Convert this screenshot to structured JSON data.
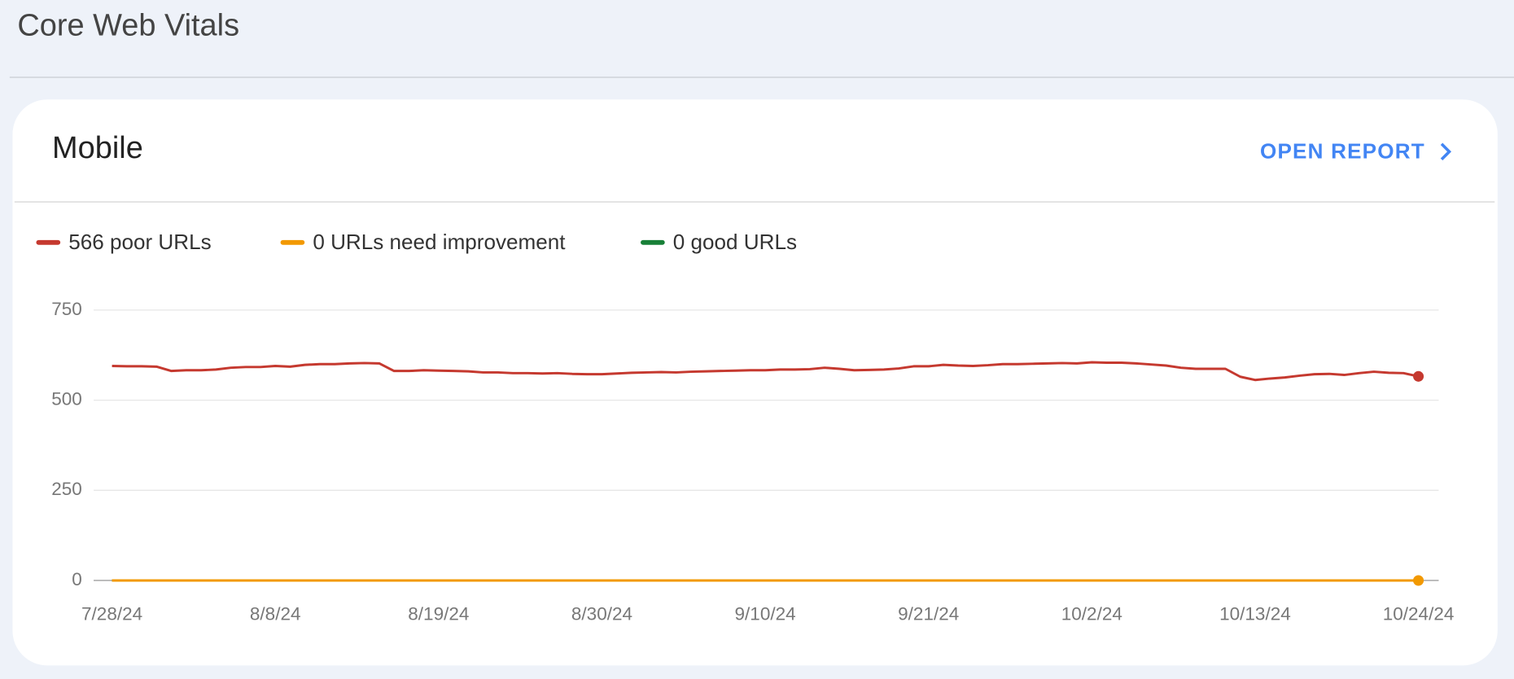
{
  "header": {
    "title": "Core Web Vitals"
  },
  "card": {
    "title": "Mobile",
    "action": "OPEN REPORT"
  },
  "chart_data": {
    "type": "line",
    "categories": [
      "7/28/24",
      null,
      null,
      null,
      null,
      null,
      null,
      null,
      null,
      null,
      null,
      "8/8/24",
      null,
      null,
      null,
      null,
      null,
      null,
      null,
      null,
      null,
      null,
      "8/19/24",
      null,
      null,
      null,
      null,
      null,
      null,
      null,
      null,
      null,
      null,
      "8/30/24",
      null,
      null,
      null,
      null,
      null,
      null,
      null,
      null,
      null,
      null,
      "9/10/24",
      null,
      null,
      null,
      null,
      null,
      null,
      null,
      null,
      null,
      null,
      "9/21/24",
      null,
      null,
      null,
      null,
      null,
      null,
      null,
      null,
      null,
      null,
      "10/2/24",
      null,
      null,
      null,
      null,
      null,
      null,
      null,
      null,
      null,
      null,
      "10/13/24",
      null,
      null,
      null,
      null,
      null,
      null,
      null,
      null,
      null,
      null,
      "10/24/24"
    ],
    "series": [
      {
        "name": "566 poor URLs",
        "color": "#c5392f",
        "values": [
          595,
          594,
          594,
          593,
          581,
          583,
          583,
          585,
          590,
          592,
          592,
          595,
          593,
          598,
          600,
          600,
          602,
          603,
          602,
          581,
          581,
          583,
          582,
          581,
          580,
          577,
          577,
          575,
          575,
          574,
          575,
          573,
          572,
          572,
          574,
          576,
          577,
          578,
          577,
          579,
          580,
          581,
          582,
          583,
          583,
          585,
          585,
          586,
          590,
          587,
          583,
          584,
          585,
          588,
          594,
          594,
          598,
          596,
          595,
          597,
          600,
          600,
          601,
          602,
          603,
          602,
          605,
          604,
          604,
          602,
          599,
          596,
          590,
          587,
          587,
          587,
          565,
          556,
          560,
          563,
          568,
          572,
          573,
          570,
          575,
          579,
          576,
          575,
          566
        ]
      },
      {
        "name": "0 URLs need improvement",
        "color": "#f29900",
        "values": [
          0,
          0,
          0,
          0,
          0,
          0,
          0,
          0,
          0,
          0,
          0,
          0,
          0,
          0,
          0,
          0,
          0,
          0,
          0,
          0,
          0,
          0,
          0,
          0,
          0,
          0,
          0,
          0,
          0,
          0,
          0,
          0,
          0,
          0,
          0,
          0,
          0,
          0,
          0,
          0,
          0,
          0,
          0,
          0,
          0,
          0,
          0,
          0,
          0,
          0,
          0,
          0,
          0,
          0,
          0,
          0,
          0,
          0,
          0,
          0,
          0,
          0,
          0,
          0,
          0,
          0,
          0,
          0,
          0,
          0,
          0,
          0,
          0,
          0,
          0,
          0,
          0,
          0,
          0,
          0,
          0,
          0,
          0,
          0,
          0,
          0,
          0,
          0,
          0
        ]
      },
      {
        "name": "0 good URLs",
        "color": "#188038",
        "values": [
          0,
          0,
          0,
          0,
          0,
          0,
          0,
          0,
          0,
          0,
          0,
          0,
          0,
          0,
          0,
          0,
          0,
          0,
          0,
          0,
          0,
          0,
          0,
          0,
          0,
          0,
          0,
          0,
          0,
          0,
          0,
          0,
          0,
          0,
          0,
          0,
          0,
          0,
          0,
          0,
          0,
          0,
          0,
          0,
          0,
          0,
          0,
          0,
          0,
          0,
          0,
          0,
          0,
          0,
          0,
          0,
          0,
          0,
          0,
          0,
          0,
          0,
          0,
          0,
          0,
          0,
          0,
          0,
          0,
          0,
          0,
          0,
          0,
          0,
          0,
          0,
          0,
          0,
          0,
          0,
          0,
          0,
          0,
          0,
          0,
          0,
          0,
          0,
          0
        ]
      }
    ],
    "ylim": [
      0,
      750
    ],
    "yticks": [
      0,
      250,
      500,
      750
    ],
    "grid": true
  }
}
